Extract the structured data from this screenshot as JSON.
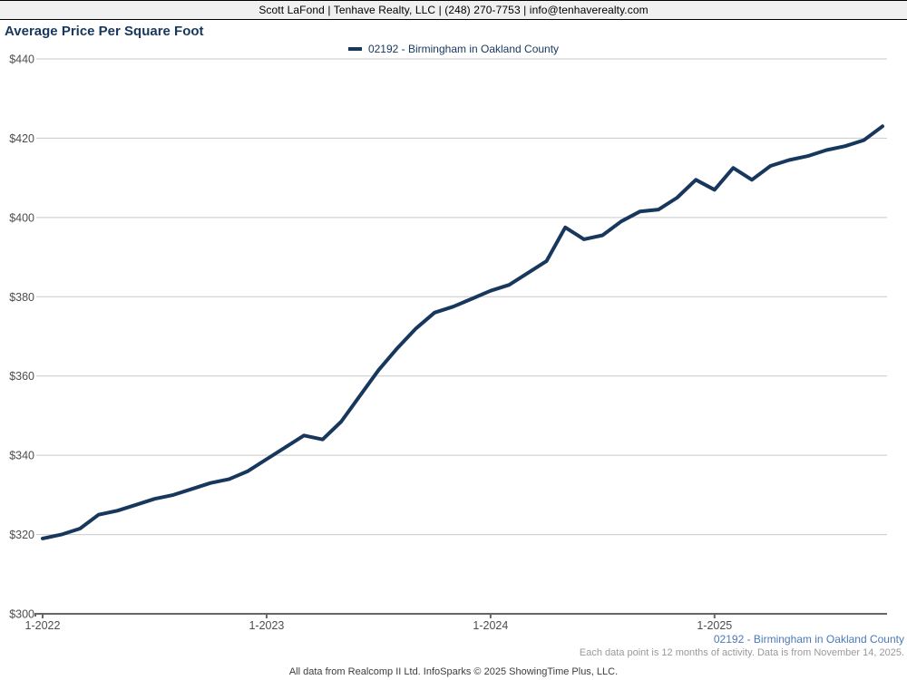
{
  "header": {
    "contact_line": "Scott LaFond | Tenhave Realty, LLC | (248) 270-7753 | info@tenhaverealty.com"
  },
  "title": "Average Price Per Square Foot",
  "legend": {
    "label": "02192 - Birmingham in Oakland County",
    "color": "#17375d"
  },
  "footer": {
    "series_label": "02192 - Birmingham in Oakland County",
    "note": "Each data point is 12 months of activity. Data is from November 14, 2025.",
    "attribution": "All data from Realcomp II Ltd. InfoSparks © 2025 ShowingTime Plus, LLC."
  },
  "chart_data": {
    "type": "line",
    "title": "Average Price Per Square Foot",
    "ylabel": "",
    "xlabel": "",
    "ylim": [
      300,
      440
    ],
    "ytick_step": 20,
    "ytick_prefix": "$",
    "grid": "horizontal",
    "legend_position": "top-center",
    "x": [
      "1-2022",
      "2-2022",
      "3-2022",
      "4-2022",
      "5-2022",
      "6-2022",
      "7-2022",
      "8-2022",
      "9-2022",
      "10-2022",
      "11-2022",
      "12-2022",
      "1-2023",
      "2-2023",
      "3-2023",
      "4-2023",
      "5-2023",
      "6-2023",
      "7-2023",
      "8-2023",
      "9-2023",
      "10-2023",
      "11-2023",
      "12-2023",
      "1-2024",
      "2-2024",
      "3-2024",
      "4-2024",
      "5-2024",
      "6-2024",
      "7-2024",
      "8-2024",
      "9-2024",
      "10-2024",
      "11-2024",
      "12-2024",
      "1-2025",
      "2-2025",
      "3-2025",
      "4-2025",
      "5-2025",
      "6-2025",
      "7-2025",
      "8-2025",
      "9-2025",
      "10-2025"
    ],
    "xtick_labels": [
      "1-2022",
      "1-2023",
      "1-2024",
      "1-2025"
    ],
    "xtick_indices": [
      0,
      12,
      24,
      36
    ],
    "series": [
      {
        "name": "02192 - Birmingham in Oakland County",
        "color": "#17375d",
        "values": [
          319,
          320,
          321.5,
          325,
          326,
          327.5,
          329,
          330,
          331.5,
          333,
          334,
          336,
          339,
          342,
          345,
          344,
          348.5,
          355,
          361.5,
          367,
          372,
          376,
          377.5,
          379.5,
          381.5,
          383,
          386,
          389,
          397.5,
          394.5,
          395.5,
          399,
          401.5,
          402,
          405,
          409.5,
          407,
          412.5,
          409.5,
          413,
          414.5,
          415.5,
          417,
          418,
          419.5,
          423
        ]
      }
    ],
    "colors": {
      "line": "#17375d",
      "gridline": "#c9c9c9",
      "axis": "#666666",
      "axis_label": "#4d4d4d"
    }
  }
}
